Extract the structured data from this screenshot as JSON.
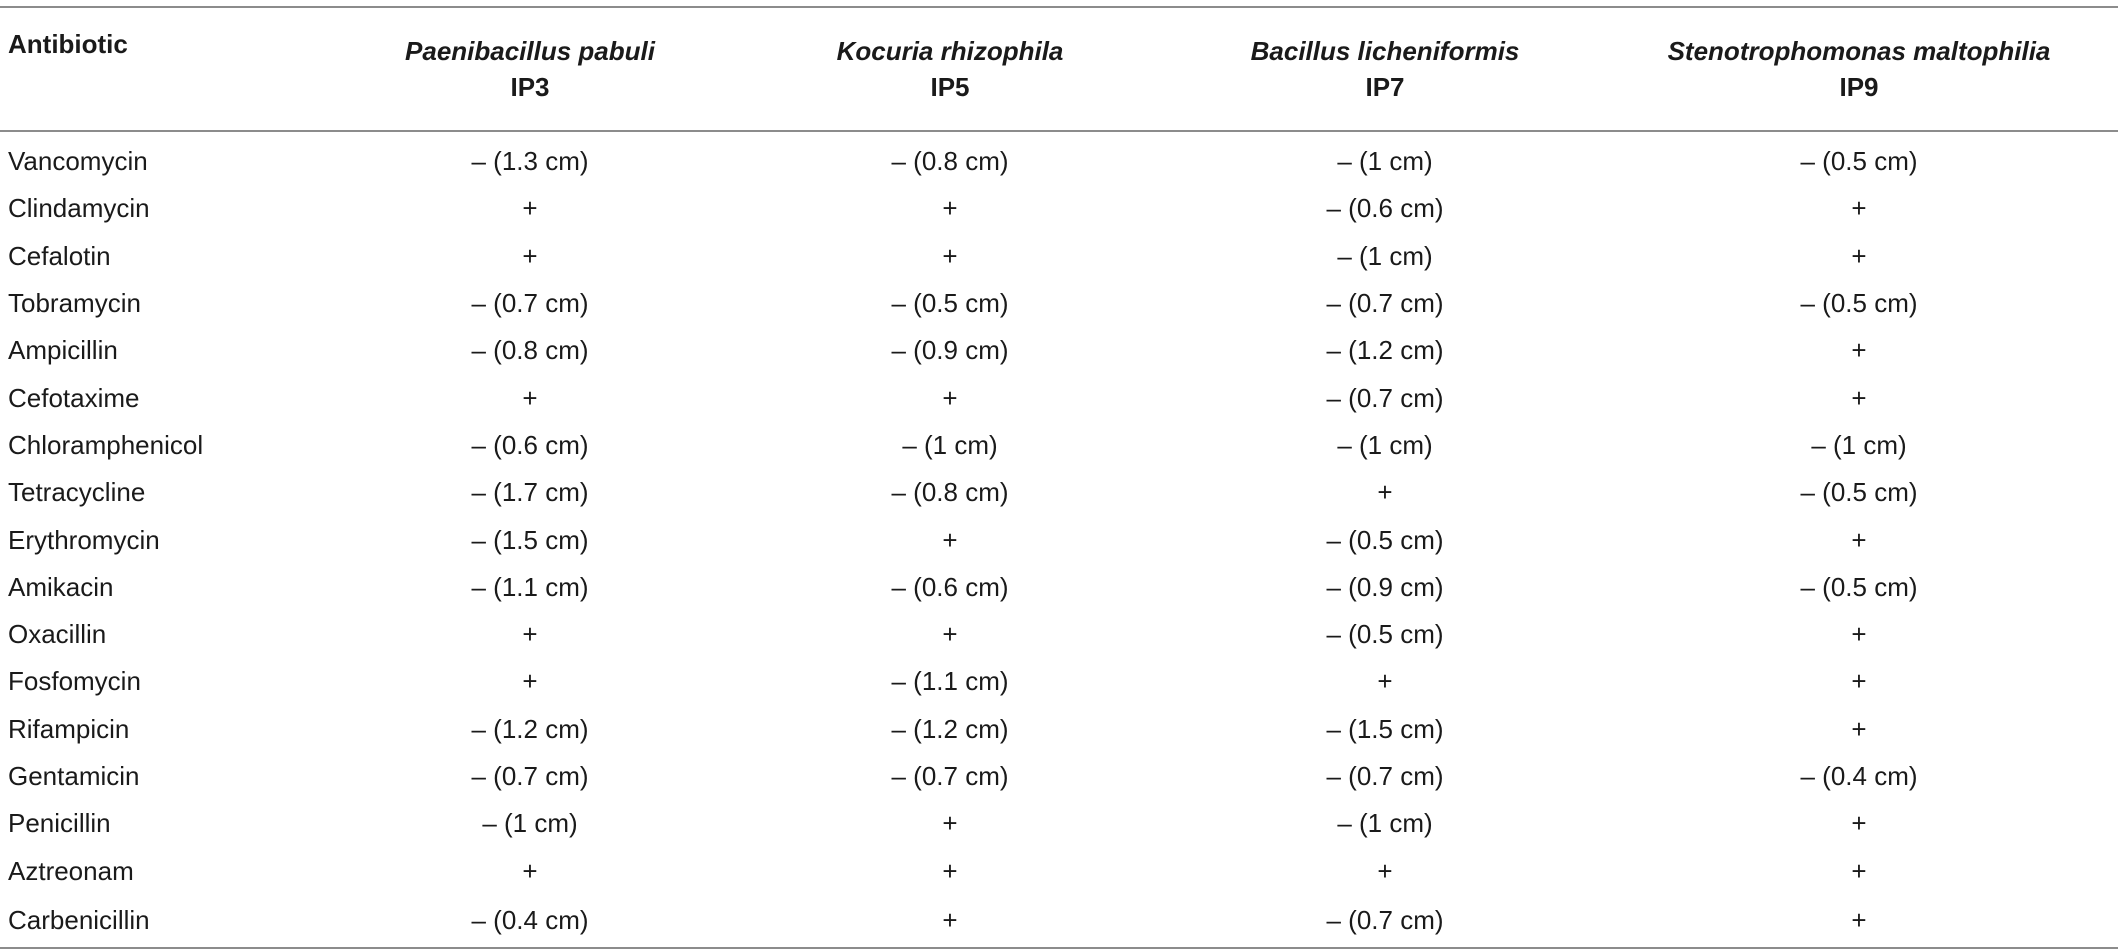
{
  "table": {
    "headers": {
      "antibiotic": "Antibiotic",
      "organisms": [
        {
          "name": "Paenibacillus pabuli",
          "code": "IP3"
        },
        {
          "name": "Kocuria rhizophila",
          "code": "IP5"
        },
        {
          "name": "Bacillus licheniformis",
          "code": "IP7"
        },
        {
          "name": "Stenotrophomonas maltophilia",
          "code": "IP9"
        }
      ]
    },
    "rows": [
      {
        "antibiotic": "Vancomycin",
        "values": [
          "– (1.3 cm)",
          "– (0.8 cm)",
          "– (1 cm)",
          "– (0.5 cm)"
        ]
      },
      {
        "antibiotic": "Clindamycin",
        "values": [
          "+",
          "+",
          "– (0.6 cm)",
          "+"
        ]
      },
      {
        "antibiotic": "Cefalotin",
        "values": [
          "+",
          "+",
          "– (1 cm)",
          "+"
        ]
      },
      {
        "antibiotic": "Tobramycin",
        "values": [
          "– (0.7 cm)",
          "– (0.5 cm)",
          "– (0.7 cm)",
          "– (0.5 cm)"
        ]
      },
      {
        "antibiotic": "Ampicillin",
        "values": [
          "– (0.8 cm)",
          "– (0.9 cm)",
          "– (1.2 cm)",
          "+"
        ]
      },
      {
        "antibiotic": "Cefotaxime",
        "values": [
          "+",
          "+",
          "– (0.7 cm)",
          "+"
        ]
      },
      {
        "antibiotic": "Chloramphenicol",
        "values": [
          "– (0.6 cm)",
          "– (1 cm)",
          "– (1 cm)",
          "– (1 cm)"
        ]
      },
      {
        "antibiotic": "Tetracycline",
        "values": [
          "– (1.7 cm)",
          "– (0.8 cm)",
          "+",
          "– (0.5 cm)"
        ]
      },
      {
        "antibiotic": "Erythromycin",
        "values": [
          "– (1.5 cm)",
          "+",
          "– (0.5 cm)",
          "+"
        ]
      },
      {
        "antibiotic": "Amikacin",
        "values": [
          "– (1.1 cm)",
          "– (0.6 cm)",
          "– (0.9 cm)",
          "– (0.5 cm)"
        ]
      },
      {
        "antibiotic": "Oxacillin",
        "values": [
          "+",
          "+",
          "– (0.5 cm)",
          "+"
        ]
      },
      {
        "antibiotic": "Fosfomycin",
        "values": [
          "+",
          "– (1.1 cm)",
          "+",
          "+"
        ]
      },
      {
        "antibiotic": "Rifampicin",
        "values": [
          "– (1.2 cm)",
          "– (1.2 cm)",
          "– (1.5 cm)",
          "+"
        ]
      },
      {
        "antibiotic": "Gentamicin",
        "values": [
          "– (0.7 cm)",
          "– (0.7 cm)",
          "– (0.7 cm)",
          "– (0.4 cm)"
        ]
      },
      {
        "antibiotic": "Penicillin",
        "values": [
          "– (1 cm)",
          "+",
          "– (1 cm)",
          "+"
        ]
      },
      {
        "antibiotic": "Aztreonam",
        "values": [
          "+",
          "+",
          "+",
          "+"
        ]
      },
      {
        "antibiotic": "Carbenicillin",
        "values": [
          "– (0.4 cm)",
          "+",
          "– (0.7 cm)",
          "+"
        ]
      }
    ]
  },
  "colors": {
    "text": "#1a1a1a",
    "rule": "#8c8c8c",
    "background": "#ffffff"
  }
}
